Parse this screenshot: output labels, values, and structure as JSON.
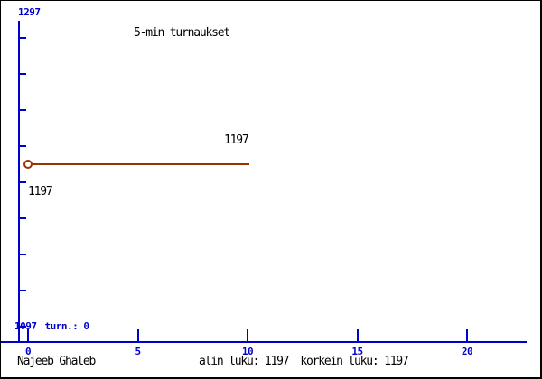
{
  "chart_data": {
    "type": "line",
    "title": "5-min turnaukset",
    "series": [
      {
        "name": "5-min turnaukset",
        "x": [
          0,
          10
        ],
        "y": [
          1197,
          1197
        ],
        "color": "#993300",
        "marker": "open-circle-at-start"
      }
    ],
    "x_ticks": [
      0,
      5,
      10,
      15,
      20
    ],
    "xlim": [
      0,
      22.7
    ],
    "ylim": [
      1097,
      1297
    ],
    "grid": false,
    "legend": "none",
    "annotations": [
      {
        "text": "1197",
        "anchor": "above-line-end"
      },
      {
        "text": "1197",
        "anchor": "below-line-start"
      }
    ]
  },
  "labels": {
    "y_max": "1297",
    "y_min": "1097",
    "turn": "turn.: 0"
  },
  "footer": {
    "author": "Najeeb Ghaleb",
    "min_label": "alin luku: 1197",
    "max_label": "korkein luku: 1197"
  },
  "colors": {
    "axis": "#0000cd",
    "series_line": "#993300",
    "text": "#000000",
    "background": "#ffffff"
  }
}
